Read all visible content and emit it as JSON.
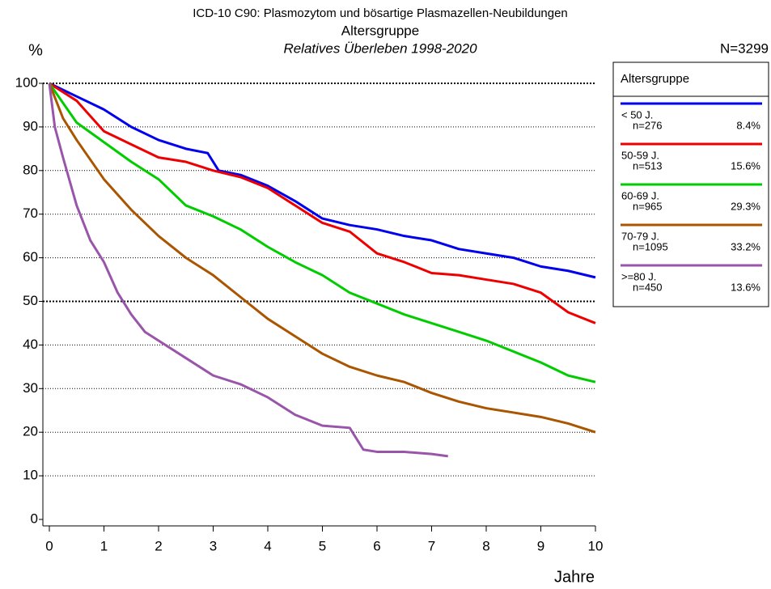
{
  "chart_data": {
    "type": "line",
    "title": "ICD-10 C90: Plasmozytom und bösartige Plasmazellen-Neubildungen",
    "subtitle": "Altersgruppe",
    "subtitle2": "Relatives Überleben 1998-2020",
    "y_label": "%",
    "x_label": "Jahre",
    "total": "N=3299",
    "legend_title": "Altersgruppe",
    "legend_position": "right",
    "grid": true,
    "xlim": [
      0,
      10
    ],
    "xticks": [
      0,
      1,
      2,
      3,
      4,
      5,
      6,
      7,
      8,
      9,
      10
    ],
    "ylim": [
      0,
      100
    ],
    "yticks": [
      0,
      10,
      20,
      30,
      40,
      50,
      60,
      70,
      80,
      90,
      100
    ],
    "series": [
      {
        "name": "< 50 J.",
        "n_label": "n=276",
        "share_label": "8.4%",
        "color": "#0000ee",
        "x": [
          0,
          0.5,
          1,
          1.5,
          2,
          2.5,
          2.9,
          3.1,
          3.5,
          4,
          4.5,
          5,
          5.5,
          6,
          6.5,
          7,
          7.5,
          8,
          8.5,
          9,
          9.5,
          10
        ],
        "values": [
          100,
          97,
          94,
          90,
          87,
          85,
          84,
          80,
          79,
          76.5,
          73,
          69,
          67.5,
          66.5,
          65,
          64,
          62,
          61,
          60,
          58,
          57,
          55.5
        ]
      },
      {
        "name": "50-59 J.",
        "n_label": "n=513",
        "share_label": "15.6%",
        "color": "#ee0000",
        "x": [
          0,
          0.5,
          1,
          1.5,
          2,
          2.5,
          3,
          3.5,
          4,
          4.5,
          5,
          5.5,
          6,
          6.5,
          7,
          7.5,
          8,
          8.5,
          9,
          9.5,
          10
        ],
        "values": [
          100,
          96,
          89,
          86,
          83,
          82,
          80,
          78.5,
          76,
          72,
          68,
          66,
          61,
          59,
          56.5,
          56,
          55,
          54,
          52,
          47.5,
          45
        ]
      },
      {
        "name": "60-69 J.",
        "n_label": "n=965",
        "share_label": "29.3%",
        "color": "#00cc00",
        "x": [
          0,
          0.5,
          1,
          1.5,
          2,
          2.5,
          3,
          3.5,
          4,
          4.5,
          5,
          5.5,
          6,
          6.5,
          7,
          7.5,
          8,
          8.5,
          9,
          9.5,
          10
        ],
        "values": [
          100,
          91,
          86.5,
          82,
          78,
          72,
          69.5,
          66.5,
          62.5,
          59,
          56,
          52,
          49.5,
          47,
          45,
          43,
          41,
          38.5,
          36,
          33,
          31.5
        ]
      },
      {
        "name": "70-79 J.",
        "n_label": "n=1095",
        "share_label": "33.2%",
        "color": "#aa5500",
        "x": [
          0,
          0.25,
          0.5,
          1,
          1.5,
          2,
          2.5,
          3,
          3.5,
          4,
          4.5,
          5,
          5.5,
          6,
          6.5,
          7,
          7.5,
          8,
          8.5,
          9,
          9.5,
          10
        ],
        "values": [
          100,
          92,
          87,
          78,
          71,
          65,
          60,
          56,
          51,
          46,
          42,
          38,
          35,
          33,
          31.5,
          29,
          27,
          25.5,
          24.5,
          23.5,
          22,
          20
        ]
      },
      {
        "name": ">=80 J.",
        "n_label": "n=450",
        "share_label": "13.6%",
        "color": "#9955aa",
        "x": [
          0,
          0.1,
          0.25,
          0.5,
          0.75,
          1,
          1.25,
          1.5,
          1.75,
          2,
          2.5,
          3,
          3.5,
          4,
          4.5,
          5,
          5.5,
          5.75,
          6,
          6.5,
          7,
          7.3
        ],
        "values": [
          100,
          90,
          83,
          72,
          64,
          59,
          52,
          47,
          43,
          41,
          37,
          33,
          31,
          28,
          24,
          21.5,
          21,
          16,
          15.5,
          15.5,
          15,
          14.5
        ]
      }
    ]
  }
}
